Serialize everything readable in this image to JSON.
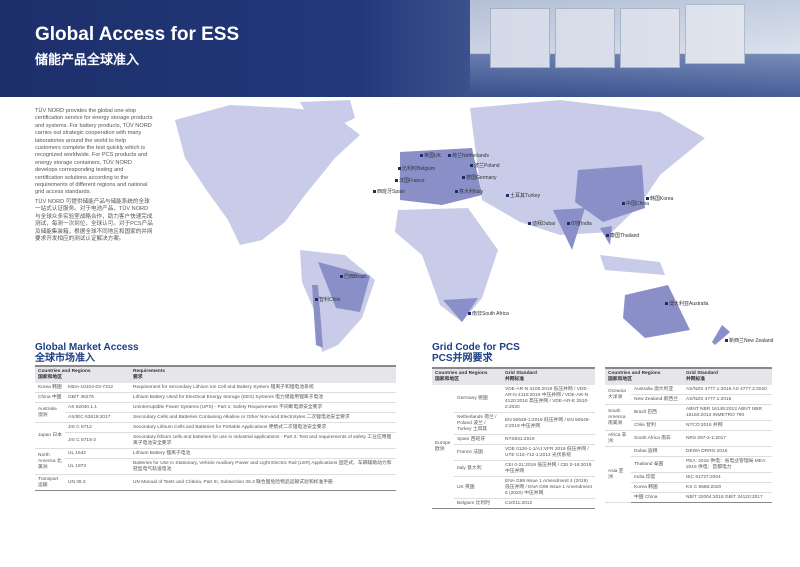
{
  "header": {
    "title": "Global Access for ESS",
    "subtitle": "储能产品全球准入"
  },
  "intro": {
    "en": "TÜV NORD provides the global one-stop certification service for energy storage products and systems. For battery products, TÜV NORD carries out strategic cooperation with many laboratories around the world to help customers complete the test quickly which is recognized worldwide. For PCS products and energy storage containers, TÜV NORD develops corresponding testing and certification solutions according to the requirements of different regions and national grid access standards.",
    "zh": "TÜV NORD 可提供储能产品与储能系统的全球一站式认证服务。对于电池产品，TÜV NORD 与全球众多实验室战略合作，助力客户快速完成测试，每测一次到位，全球认可。对于PCS产品及储能集装箱，根据全球不同地区和国家的并网要求开发相应的测试认证解决方案。"
  },
  "colors": {
    "brand": "#1d2f6b",
    "highlight": "#8a8fc8",
    "land": "#c9cce8"
  },
  "map_labels": [
    "英国UK",
    "比利时Belgium",
    "法国France",
    "西班牙Spain",
    "荷兰Netherlands",
    "波兰Poland",
    "德国Germany",
    "意大利Italy",
    "土耳其Turkey",
    "迪拜Dubai",
    "印度India",
    "中国China",
    "韩国Korea",
    "泰国Thailand",
    "澳大利亚Australia",
    "新西兰New Zealand",
    "巴西Brazil",
    "智利Chile",
    "南非South Africa"
  ],
  "market": {
    "title": "Global Market Access",
    "title_zh": "全球市场准入",
    "col1": "Countries and Regions",
    "col1_zh": "国家和地区",
    "col2": "Requirements",
    "col2_zh": "要求",
    "rows": [
      [
        "Korea 韩国",
        "KBIA-10104-03-7312",
        "Requirement for Secondary Lithium Ion Cell and Battery System 锂离子和锂电池系统"
      ],
      [
        "China 中国",
        "GB/T 36276",
        "Lithium Battery Used for Electrical Energy Storage (EES) Systems 电力储能用锂离子电池"
      ],
      [
        "Australia 澳洲",
        "AS 62040.1.1",
        "Uninterruptible Power Systems (UPS) - Part 1: Safety Requirements 不间断电源安全要求"
      ],
      [
        "",
        "AS/IEC 62619:2017",
        "Secondary Cells and Batteries Containing Alkaline or Other Non-acid Electrolytes 二次锂电池安全要求"
      ],
      [
        "Japan 日本",
        "JIS C 8712",
        "Secondary Lithium Cells and Batteries for Portable Applications 便携式二次锂电池安全要求"
      ],
      [
        "",
        "JIS C 8715-2",
        "Secondary lithium cells and batteries for use in industrial applications - Part 2: Test and requirements of safety 工业应用锂离子电池安全要求"
      ],
      [
        "North America 北美洲",
        "UL 1642",
        "Lithium Battery 锂离子电池"
      ],
      [
        "",
        "UL 1973",
        "Batteries for Use In Stationary, Vehicle Auxiliary Power and Light Electric Rail (LER) Applications 固定式、车辆辅助动力和轻型电气轨道电池"
      ],
      [
        "Transport 运输",
        "UN 38.3",
        "UN Manual of Tests and Criteria, Part III, Subsection 38.3 联合国危险物品运输试验和标准手册"
      ]
    ]
  },
  "grid": {
    "title": "Grid Code for PCS",
    "title_zh": "PCS并网要求",
    "col1": "Countries and Regions",
    "col1_zh": "国家和地区",
    "col2": "Grid Standard",
    "col2_zh": "并网标准",
    "europe": "Europe 欧洲",
    "rows": [
      [
        "Germany 德国",
        "VDE-AR-N 4105:2018 低压并网 / VDE-AR-N 4110:2018 中压并网 / VDE-AR-N 4120:2018 高压并网 / VDE-AR-E 2510-2:2020"
      ],
      [
        "Netherlands 荷兰 / Poland 波兰 / Turkey 土耳其",
        "EN 50549-1:2019 低压并网 / EN 50549-2:2019 中压并网"
      ],
      [
        "Spain 西班牙",
        "NTS631:2019"
      ],
      [
        "France 法国",
        "VDE 0126-1-1/A1:VFR 2019 低压并网 / UTE C15-712-1:2013 光伏系统"
      ],
      [
        "Italy 意大利",
        "CEI 0-21:2019 低压并网 / CEI 0-16:2019 中压并网"
      ],
      [
        "UK 英国",
        "ENA G98 Issue 1 Amendment 4 (2019) 低压并网 / ENA G99 Issue 1 Amendment 6 (2020) 中压并网"
      ],
      [
        "Belgium 比利时",
        "C10/11:2012"
      ]
    ]
  },
  "grid2": {
    "col1": "Countries and Regions",
    "col1_zh": "国家和地区",
    "col2": "Grid Standard",
    "col2_zh": "并网标准",
    "rows": [
      [
        "Oceania 大洋洲",
        "Australia 澳大利亚",
        "AS/NZS 4777.1:2016 AS 4777.2:2020"
      ],
      [
        "",
        "New Zealand 新西兰",
        "AS/NZS 4777.1:2016"
      ],
      [
        "South America 南美洲",
        "Brazil 巴西",
        "ABNT NBR 16149:2013 ABNT NBR 16150:2013 INMETRO 790"
      ],
      [
        "",
        "Chile 智利",
        "NTCO:2016 并网"
      ],
      [
        "Africa 非洲",
        "South Africa 南非",
        "NRS 097-2-1:2017"
      ],
      [
        "Asia 亚洲",
        "Dubai 迪拜",
        "DEWA DRRG:2016"
      ],
      [
        "",
        "Thailand 泰国",
        "PEA: 2016 供电：省电业管理局 MEA: 2015 供电：首都电力"
      ],
      [
        "",
        "India 印度",
        "IEC 61727:2004"
      ],
      [
        "",
        "Korea 韩国",
        "KS C 8565:2020"
      ],
      [
        "",
        "中国 China",
        "NB/T 32004:2018 GB/T 34120:2017"
      ]
    ]
  }
}
